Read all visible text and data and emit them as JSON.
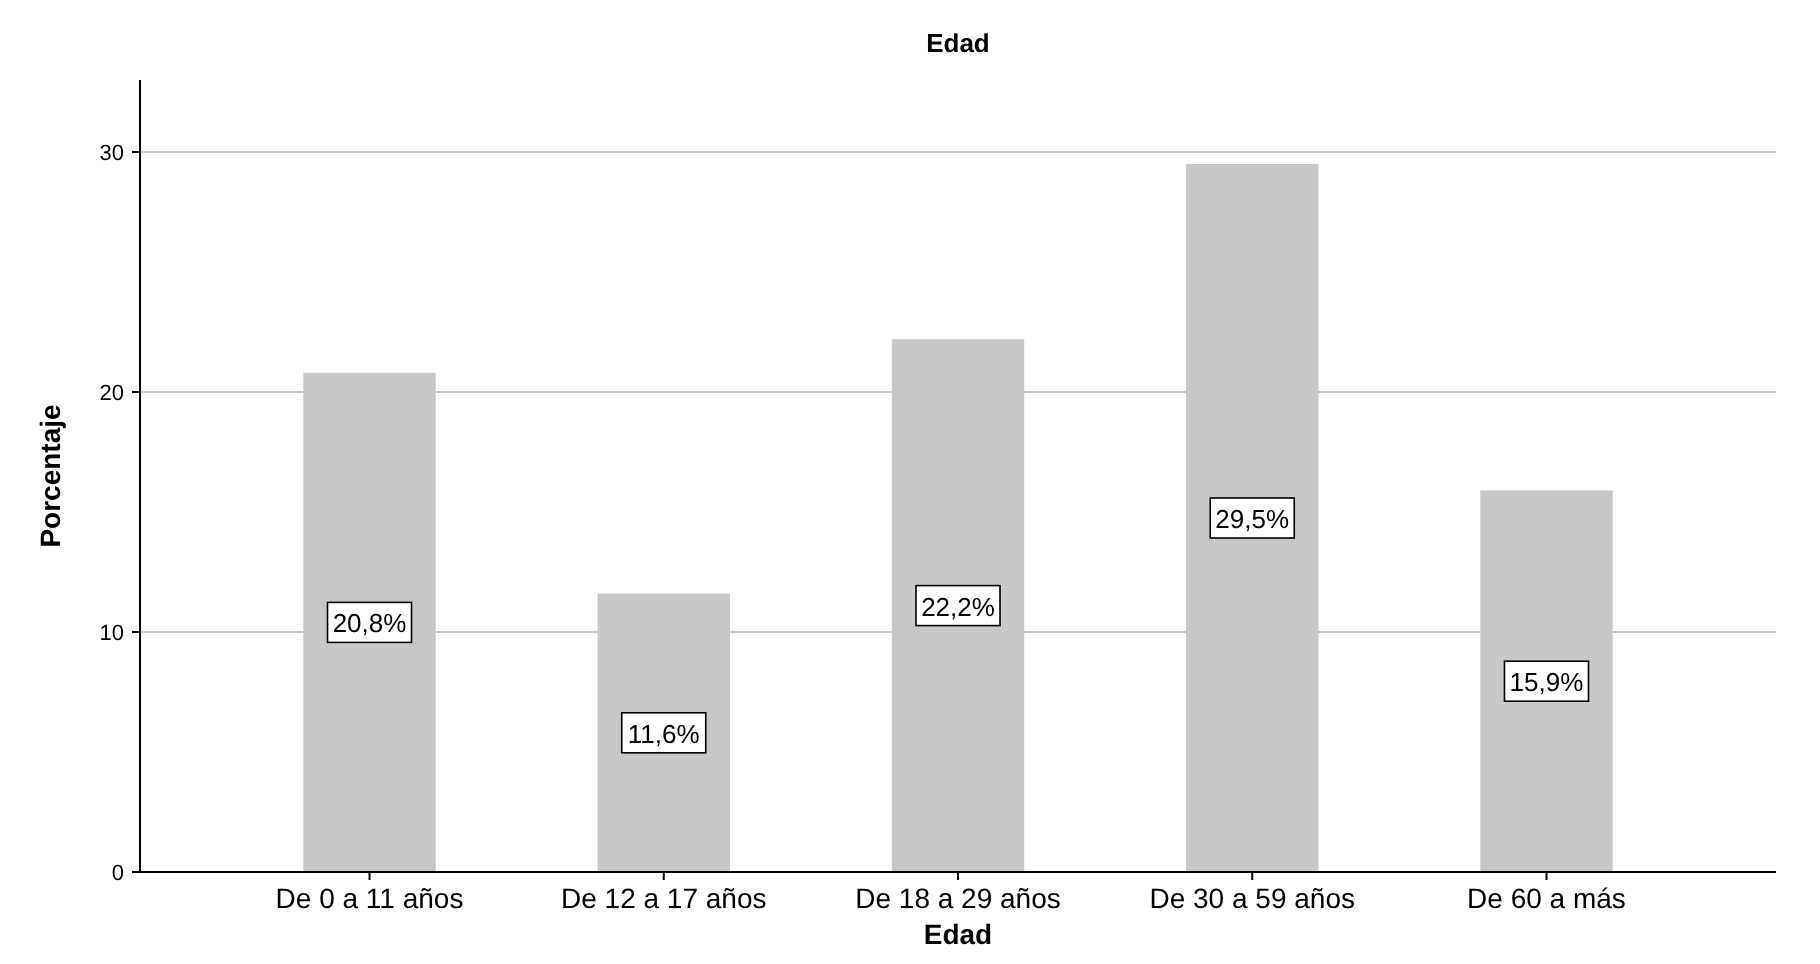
{
  "chart_data": {
    "type": "bar",
    "title": "Edad",
    "xlabel": "Edad",
    "ylabel": "Porcentaje",
    "categories": [
      "De 0 a 11 años",
      "De 12 a 17 años",
      "De 18 a 29 años",
      "De 30 a 59 años",
      "De 60 a más"
    ],
    "values": [
      20.8,
      11.6,
      22.2,
      29.5,
      15.9
    ],
    "value_labels": [
      "20,8%",
      "11,6%",
      "22,2%",
      "29,5%",
      "15,9%"
    ],
    "color": "#c8c8c8",
    "ylim": [
      0,
      33
    ],
    "yticks": [
      0,
      10,
      20,
      30
    ],
    "grid": "y"
  }
}
